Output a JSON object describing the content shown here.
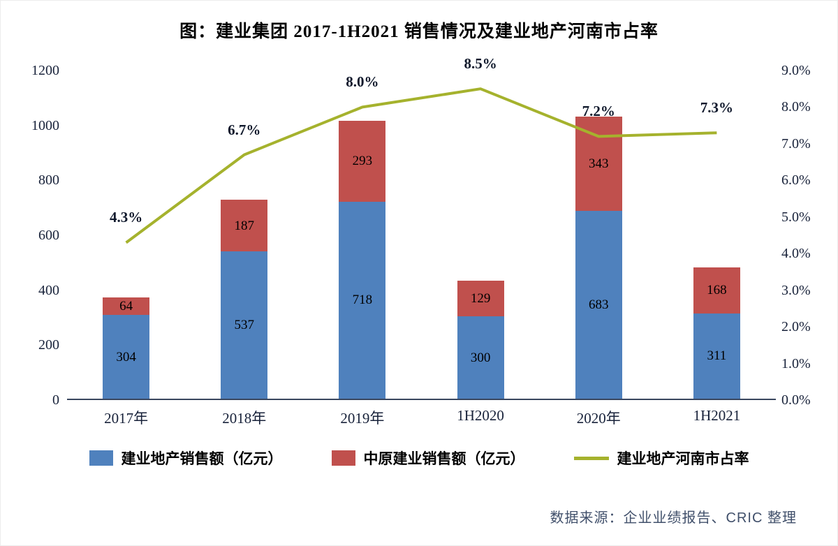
{
  "title": "图：建业集团 2017-1H2021 销售情况及建业地产河南市占率",
  "source_note": "数据来源：企业业绩报告、CRIC 整理",
  "colors": {
    "blue_bar": "#4f81bd",
    "red_bar": "#c0504d",
    "line": "#a5b22d",
    "axis_text": "#18223a",
    "axis_line": "#39465e",
    "bar_label_text": "#000000"
  },
  "chart_data": {
    "type": "combo",
    "subtype": "stacked-bar + line",
    "categories": [
      "2017年",
      "2018年",
      "2019年",
      "1H2020",
      "2020年",
      "1H2021"
    ],
    "series": [
      {
        "name": "建业地产销售额（亿元）",
        "type": "bar",
        "axis": "left",
        "color": "#4f81bd",
        "values": [
          304,
          537,
          718,
          300,
          683,
          311
        ]
      },
      {
        "name": "中原建业销售额（亿元）",
        "type": "bar",
        "axis": "left",
        "color": "#c0504d",
        "values": [
          64,
          187,
          293,
          129,
          343,
          168
        ]
      },
      {
        "name": "建业地产河南市占率",
        "type": "line",
        "axis": "right",
        "color": "#a5b22d",
        "values": [
          4.3,
          6.7,
          8.0,
          8.5,
          7.2,
          7.3
        ],
        "labels": [
          "4.3%",
          "6.7%",
          "8.0%",
          "8.5%",
          "7.2%",
          "7.3%"
        ]
      }
    ],
    "left_axis": {
      "min": 0,
      "max": 1200,
      "step": 200,
      "ticks": [
        "0",
        "200",
        "400",
        "600",
        "800",
        "1000",
        "1200"
      ]
    },
    "right_axis": {
      "min": 0,
      "max": 9,
      "step": 1,
      "ticks": [
        "0.0%",
        "1.0%",
        "2.0%",
        "3.0%",
        "4.0%",
        "5.0%",
        "6.0%",
        "7.0%",
        "8.0%",
        "9.0%"
      ]
    },
    "grid": false,
    "legend_position": "bottom"
  }
}
